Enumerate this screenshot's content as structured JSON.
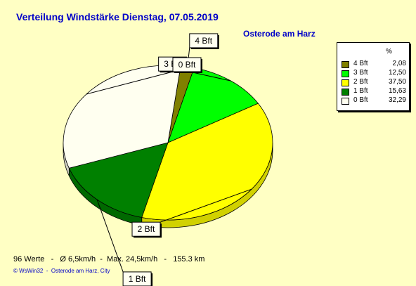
{
  "chart_data": {
    "type": "pie",
    "title": "Verteilung Windstärke  Dienstag, 07.05.2019",
    "subtitle": "Osterode am Harz",
    "legend_header": "%",
    "slices": [
      {
        "label": "4 Bft",
        "value": 2.08,
        "value_text": "2,08",
        "color": "#808000"
      },
      {
        "label": "3 Bft",
        "value": 12.5,
        "value_text": "12,50",
        "color": "#00ff00"
      },
      {
        "label": "2 Bft",
        "value": 37.5,
        "value_text": "37,50",
        "color": "#ffff00"
      },
      {
        "label": "1 Bft",
        "value": 15.63,
        "value_text": "15,63",
        "color": "#008000"
      },
      {
        "label": "0 Bft",
        "value": 32.29,
        "value_text": "32,29",
        "color": "#fffff0"
      }
    ]
  },
  "footer": "96 Werte   -   Ø 6,5km/h  -  Max. 24,5km/h   -   155.3 km",
  "credit": "© WsWin32  -  Osterode am Harz, City"
}
